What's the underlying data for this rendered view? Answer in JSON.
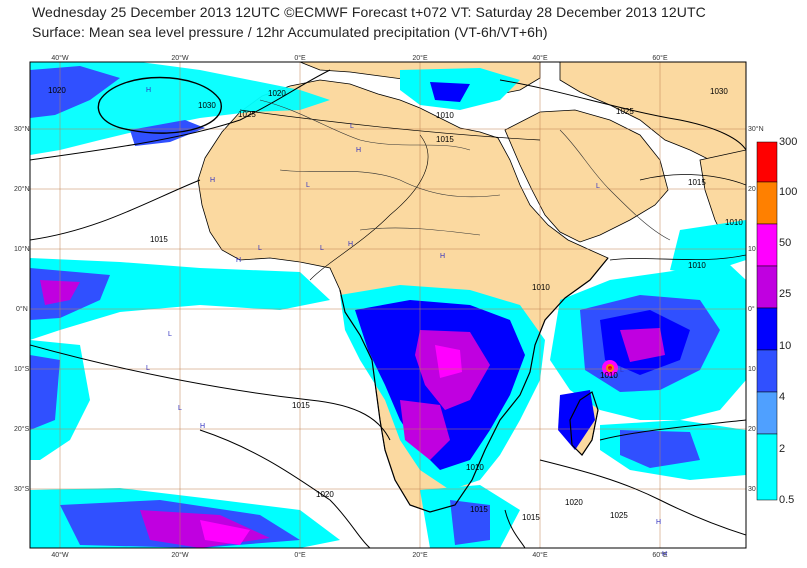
{
  "header": {
    "line1": "Wednesday 25 December 2013 12UTC ©ECMWF Forecast t+072 VT: Saturday 28 December 2013 12UTC",
    "line2": "Surface: Mean sea level pressure / 12hr Accumulated precipitation (VT-6h/VT+6h)"
  },
  "axes": {
    "lon_labels": [
      "40°W",
      "20°W",
      "0°E",
      "20°E",
      "40°E",
      "60°E"
    ],
    "lat_labels_left": [
      "30°N",
      "20°N",
      "10°N",
      "0°N",
      "10°S",
      "20°S",
      "30°S"
    ],
    "lat_labels_right": [
      "30°N",
      "20",
      "10",
      "0°",
      "10",
      "20",
      "30"
    ]
  },
  "isobars": [
    "1020",
    "1030",
    "1025",
    "1020",
    "1010",
    "1015",
    "1025",
    "1030",
    "1015",
    "1010",
    "1015",
    "1010",
    "1010",
    "1015",
    "1010",
    "1020",
    "1015",
    "1015",
    "1020",
    "1025",
    "1010"
  ],
  "pressure_markers": {
    "high": "H",
    "low": "L"
  },
  "legend": {
    "levels": [
      "300",
      "100",
      "50",
      "25",
      "10",
      "4",
      "2",
      "0.5"
    ],
    "colors": [
      "#ff0000",
      "#ff8000",
      "#ff00ff",
      "#c000e0",
      "#0000ff",
      "#3050ff",
      "#00ffff"
    ]
  },
  "colors": {
    "ocean": "#ffffff",
    "land": "#fbd9a0",
    "coast": "#000000",
    "grid": "#c08050",
    "cyan": "#00ffff",
    "light_blue": "#3050ff",
    "blue": "#0000ff",
    "purple": "#c000e0",
    "magenta": "#ff00ff"
  }
}
